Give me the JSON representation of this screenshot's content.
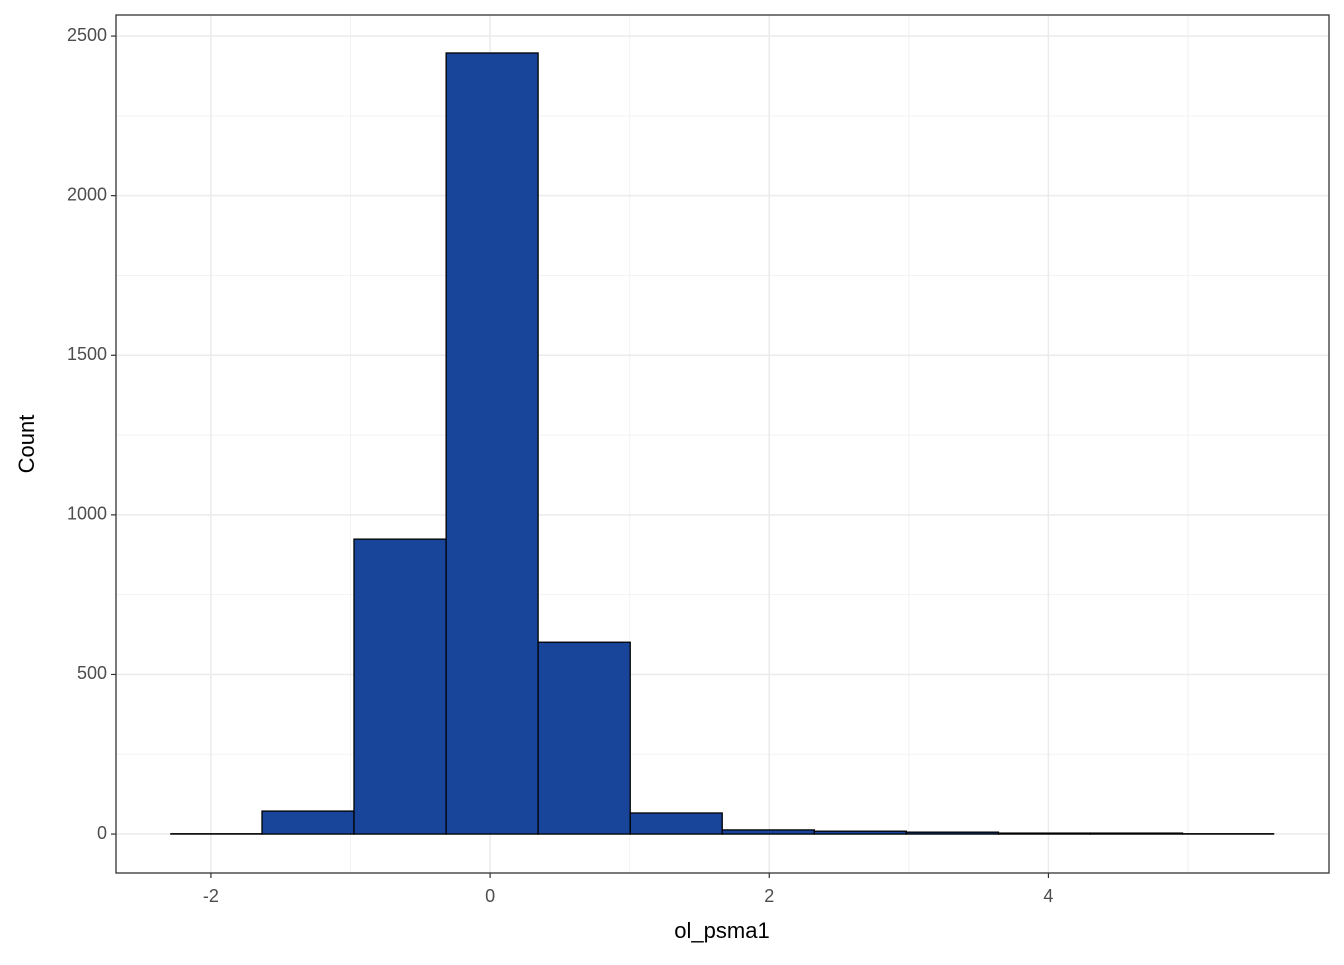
{
  "chart_data": {
    "type": "histogram",
    "x_label": "ol_psma1",
    "y_label": "Count",
    "bins": [
      -2.287,
      -1.634,
      -0.975,
      -0.315,
      0.344,
      1.004,
      1.663,
      2.323,
      2.982,
      3.642,
      4.301,
      4.961,
      5.613
    ],
    "values": [
      1,
      72,
      924,
      2447,
      601,
      66,
      13,
      9,
      6,
      3,
      3,
      1
    ],
    "color": "#18449a",
    "edgecolor": "#000000",
    "xlim": [
      -2.68,
      6.01
    ],
    "ylim": [
      -122,
      2566
    ],
    "xticks": [
      -2,
      0,
      2,
      4
    ],
    "yticks": [
      0,
      500,
      1000,
      1500,
      2000,
      2500
    ],
    "minor_xticks": [
      -1,
      1,
      3,
      5
    ],
    "minor_yticks": [
      250,
      750,
      1250,
      1750,
      2250
    ],
    "grid": true
  }
}
